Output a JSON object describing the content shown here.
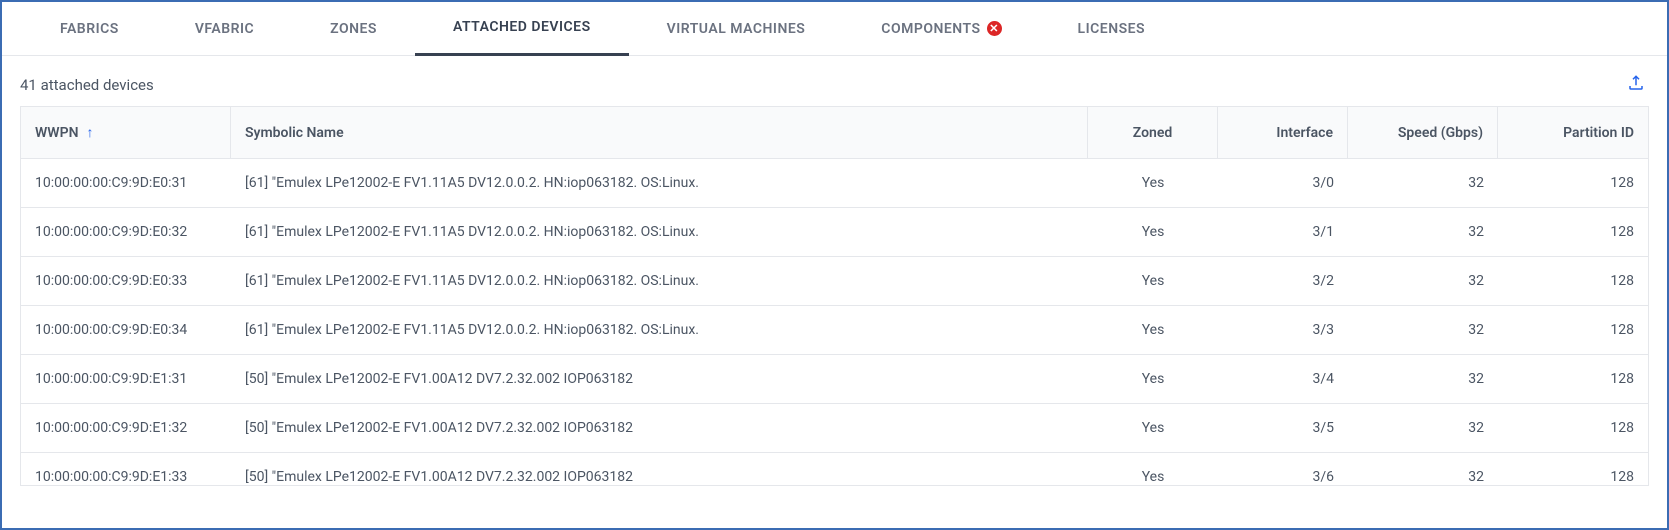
{
  "colors": {
    "border": "#3b6cb3",
    "tab_inactive": "#6b7280",
    "tab_active": "#374151",
    "error_badge_bg": "#dc2626",
    "error_badge_fg": "#ffffff",
    "link": "#2563eb",
    "grid_border": "#e5e7eb",
    "header_bg": "#f9fafb",
    "text": "#4b5563"
  },
  "tabs": [
    {
      "label": "FABRICS",
      "active": false,
      "error": false
    },
    {
      "label": "VFABRIC",
      "active": false,
      "error": false
    },
    {
      "label": "ZONES",
      "active": false,
      "error": false
    },
    {
      "label": "ATTACHED DEVICES",
      "active": true,
      "error": false
    },
    {
      "label": "VIRTUAL MACHINES",
      "active": false,
      "error": false
    },
    {
      "label": "COMPONENTS",
      "active": false,
      "error": true
    },
    {
      "label": "LICENSES",
      "active": false,
      "error": false
    }
  ],
  "summary": "41 attached devices",
  "sort": {
    "column": "WWPN",
    "direction": "asc",
    "arrow": "↑"
  },
  "columns": [
    {
      "key": "wwpn",
      "label": "WWPN",
      "sorted": true
    },
    {
      "key": "name",
      "label": "Symbolic Name",
      "sorted": false
    },
    {
      "key": "zoned",
      "label": "Zoned",
      "sorted": false
    },
    {
      "key": "interface",
      "label": "Interface",
      "sorted": false
    },
    {
      "key": "speed",
      "label": "Speed (Gbps)",
      "sorted": false
    },
    {
      "key": "partition",
      "label": "Partition ID",
      "sorted": false
    }
  ],
  "rows": [
    {
      "wwpn": "10:00:00:00:C9:9D:E0:31",
      "name": "[61] \"Emulex LPe12002-E FV1.11A5 DV12.0.0.2. HN:iop063182. OS:Linux.",
      "zoned": "Yes",
      "interface": "3/0",
      "speed": "32",
      "partition": "128"
    },
    {
      "wwpn": "10:00:00:00:C9:9D:E0:32",
      "name": "[61] \"Emulex LPe12002-E FV1.11A5 DV12.0.0.2. HN:iop063182. OS:Linux.",
      "zoned": "Yes",
      "interface": "3/1",
      "speed": "32",
      "partition": "128"
    },
    {
      "wwpn": "10:00:00:00:C9:9D:E0:33",
      "name": "[61] \"Emulex LPe12002-E FV1.11A5 DV12.0.0.2. HN:iop063182. OS:Linux.",
      "zoned": "Yes",
      "interface": "3/2",
      "speed": "32",
      "partition": "128"
    },
    {
      "wwpn": "10:00:00:00:C9:9D:E0:34",
      "name": "[61] \"Emulex LPe12002-E FV1.11A5 DV12.0.0.2. HN:iop063182. OS:Linux.",
      "zoned": "Yes",
      "interface": "3/3",
      "speed": "32",
      "partition": "128"
    },
    {
      "wwpn": "10:00:00:00:C9:9D:E1:31",
      "name": "[50] \"Emulex LPe12002-E FV1.00A12 DV7.2.32.002 IOP063182",
      "zoned": "Yes",
      "interface": "3/4",
      "speed": "32",
      "partition": "128"
    },
    {
      "wwpn": "10:00:00:00:C9:9D:E1:32",
      "name": "[50] \"Emulex LPe12002-E FV1.00A12 DV7.2.32.002 IOP063182",
      "zoned": "Yes",
      "interface": "3/5",
      "speed": "32",
      "partition": "128"
    },
    {
      "wwpn": "10:00:00:00:C9:9D:E1:33",
      "name": "[50] \"Emulex LPe12002-E FV1.00A12 DV7.2.32.002 IOP063182",
      "zoned": "Yes",
      "interface": "3/6",
      "speed": "32",
      "partition": "128"
    }
  ]
}
